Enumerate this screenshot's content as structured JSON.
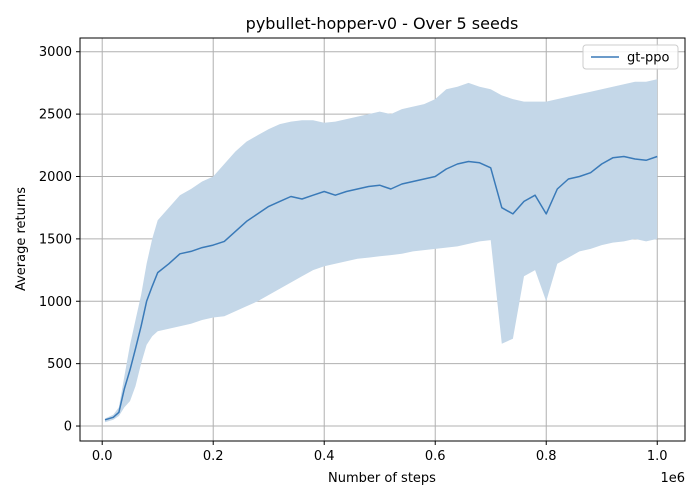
{
  "chart_data": {
    "type": "line",
    "title": "pybullet-hopper-v0 - Over 5 seeds",
    "xlabel": "Number of steps",
    "ylabel": "Average returns",
    "x_offset_label": "1e6",
    "xlim": [
      -0.04,
      1.05
    ],
    "ylim": [
      -120,
      3110
    ],
    "xticks": [
      0.0,
      0.2,
      0.4,
      0.6,
      0.8,
      1.0
    ],
    "xtick_labels": [
      "0.0",
      "0.2",
      "0.4",
      "0.6",
      "0.8",
      "1.0"
    ],
    "yticks": [
      0,
      500,
      1000,
      1500,
      2000,
      2500,
      3000
    ],
    "ytick_labels": [
      "0",
      "500",
      "1000",
      "1500",
      "2000",
      "2500",
      "3000"
    ],
    "grid": true,
    "legend_position": "top-right",
    "series": [
      {
        "name": "gt-ppo",
        "color": "#3a7ab8",
        "band_color": "#c4d7e8",
        "x": [
          0.005,
          0.02,
          0.03,
          0.04,
          0.05,
          0.06,
          0.07,
          0.08,
          0.09,
          0.1,
          0.12,
          0.14,
          0.16,
          0.18,
          0.2,
          0.22,
          0.24,
          0.26,
          0.28,
          0.3,
          0.32,
          0.34,
          0.36,
          0.38,
          0.4,
          0.42,
          0.44,
          0.46,
          0.48,
          0.5,
          0.52,
          0.54,
          0.56,
          0.58,
          0.6,
          0.62,
          0.64,
          0.66,
          0.68,
          0.7,
          0.72,
          0.74,
          0.76,
          0.78,
          0.8,
          0.82,
          0.84,
          0.86,
          0.88,
          0.9,
          0.92,
          0.94,
          0.96,
          0.98,
          1.0
        ],
        "mean": [
          50,
          70,
          110,
          300,
          450,
          620,
          800,
          1000,
          1120,
          1230,
          1300,
          1380,
          1400,
          1430,
          1450,
          1480,
          1560,
          1640,
          1700,
          1760,
          1800,
          1840,
          1820,
          1850,
          1880,
          1850,
          1880,
          1900,
          1920,
          1930,
          1900,
          1940,
          1960,
          1980,
          2000,
          2060,
          2100,
          2120,
          2110,
          2070,
          1750,
          1700,
          1800,
          1850,
          1700,
          1900,
          1980,
          2000,
          2030,
          2100,
          2150,
          2160,
          2140,
          2130,
          2160
        ],
        "lower": [
          30,
          50,
          80,
          150,
          200,
          320,
          500,
          650,
          720,
          760,
          780,
          800,
          820,
          850,
          870,
          880,
          920,
          960,
          1000,
          1050,
          1100,
          1150,
          1200,
          1250,
          1280,
          1300,
          1320,
          1340,
          1350,
          1360,
          1370,
          1380,
          1400,
          1410,
          1420,
          1430,
          1440,
          1460,
          1480,
          1490,
          660,
          700,
          1200,
          1250,
          1000,
          1300,
          1350,
          1400,
          1420,
          1450,
          1470,
          1480,
          1500,
          1480,
          1500
        ],
        "upper": [
          60,
          90,
          150,
          400,
          650,
          850,
          1050,
          1300,
          1500,
          1650,
          1750,
          1850,
          1900,
          1960,
          2000,
          2100,
          2200,
          2280,
          2330,
          2380,
          2420,
          2440,
          2450,
          2450,
          2430,
          2440,
          2460,
          2480,
          2500,
          2520,
          2500,
          2540,
          2560,
          2580,
          2620,
          2700,
          2720,
          2750,
          2720,
          2700,
          2650,
          2620,
          2600,
          2600,
          2600,
          2620,
          2640,
          2660,
          2680,
          2700,
          2720,
          2740,
          2760,
          2760,
          2780
        ]
      }
    ]
  }
}
